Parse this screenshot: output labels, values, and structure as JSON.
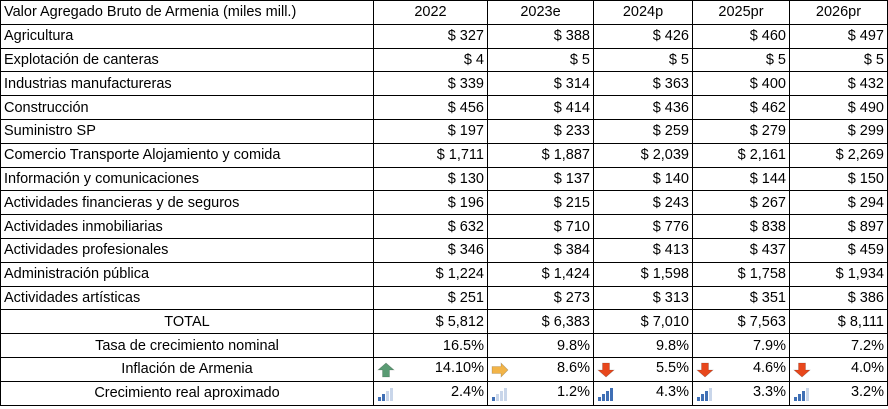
{
  "table": {
    "title": "Valor Agregado Bruto de Armenia (miles mill.)",
    "years": [
      "2022",
      "2023e",
      "2024p",
      "2025pr",
      "2026pr"
    ],
    "rows": [
      {
        "label": "Agricultura",
        "values": [
          "$ 327",
          "$ 388",
          "$ 426",
          "$ 460",
          "$ 497"
        ]
      },
      {
        "label": "Explotación de canteras",
        "values": [
          "$ 4",
          "$ 5",
          "$ 5",
          "$ 5",
          "$ 5"
        ]
      },
      {
        "label": "Industrias manufactureras",
        "values": [
          "$ 339",
          "$ 314",
          "$ 363",
          "$ 400",
          "$ 432"
        ]
      },
      {
        "label": "Construcción",
        "values": [
          "$ 456",
          "$ 414",
          "$ 436",
          "$ 462",
          "$ 490"
        ]
      },
      {
        "label": "Suministro SP",
        "values": [
          "$ 197",
          "$ 233",
          "$ 259",
          "$ 279",
          "$ 299"
        ]
      },
      {
        "label": "Comercio Transporte Alojamiento y comida",
        "values": [
          "$ 1,711",
          "$ 1,887",
          "$ 2,039",
          "$ 2,161",
          "$ 2,269"
        ]
      },
      {
        "label": "Información y comunicaciones",
        "values": [
          "$ 130",
          "$ 137",
          "$ 140",
          "$ 144",
          "$ 150"
        ]
      },
      {
        "label": "Actividades financieras y de seguros",
        "values": [
          "$ 196",
          "$ 215",
          "$ 243",
          "$ 267",
          "$ 294"
        ]
      },
      {
        "label": "Actividades inmobiliarias",
        "values": [
          "$ 632",
          "$ 710",
          "$ 776",
          "$ 838",
          "$ 897"
        ]
      },
      {
        "label": "Actividades profesionales",
        "values": [
          "$ 346",
          "$ 384",
          "$ 413",
          "$ 437",
          "$ 459"
        ]
      },
      {
        "label": "Administración pública",
        "values": [
          "$ 1,224",
          "$ 1,424",
          "$ 1,598",
          "$ 1,758",
          "$ 1,934"
        ]
      },
      {
        "label": "Actividades artísticas",
        "values": [
          "$ 251",
          "$ 273",
          "$ 313",
          "$ 351",
          "$ 386"
        ]
      }
    ],
    "total": {
      "label": "TOTAL",
      "values": [
        "$ 5,812",
        "$ 6,383",
        "$ 7,010",
        "$ 7,563",
        "$ 8,111"
      ]
    },
    "growth_nominal": {
      "label": "Tasa de crecimiento nominal",
      "values": [
        "16.5%",
        "9.8%",
        "9.8%",
        "7.9%",
        "7.2%"
      ]
    },
    "inflation": {
      "label": "Inflación de Armenia",
      "values": [
        "14.10%",
        "8.6%",
        "5.5%",
        "4.6%",
        "4.0%"
      ],
      "icons": [
        "arrow-up-icon",
        "arrow-right-icon",
        "arrow-down-icon",
        "arrow-down-icon",
        "arrow-down-icon"
      ],
      "colors": {
        "up": "#5a9b73",
        "right": "#f2b448",
        "down": "#e8471c"
      }
    },
    "growth_real": {
      "label": "Crecimiento real aproximado",
      "values": [
        "2.4%",
        "1.2%",
        "4.3%",
        "3.3%",
        "3.2%"
      ],
      "icons": [
        "signal-bars-icon",
        "signal-bars-icon",
        "signal-bars-icon",
        "signal-bars-icon",
        "signal-bars-icon"
      ],
      "bar_levels": [
        2,
        1,
        4,
        3,
        3
      ],
      "colors": {
        "filled": "#3f6fb5",
        "empty": "#c9d6ea"
      }
    }
  }
}
